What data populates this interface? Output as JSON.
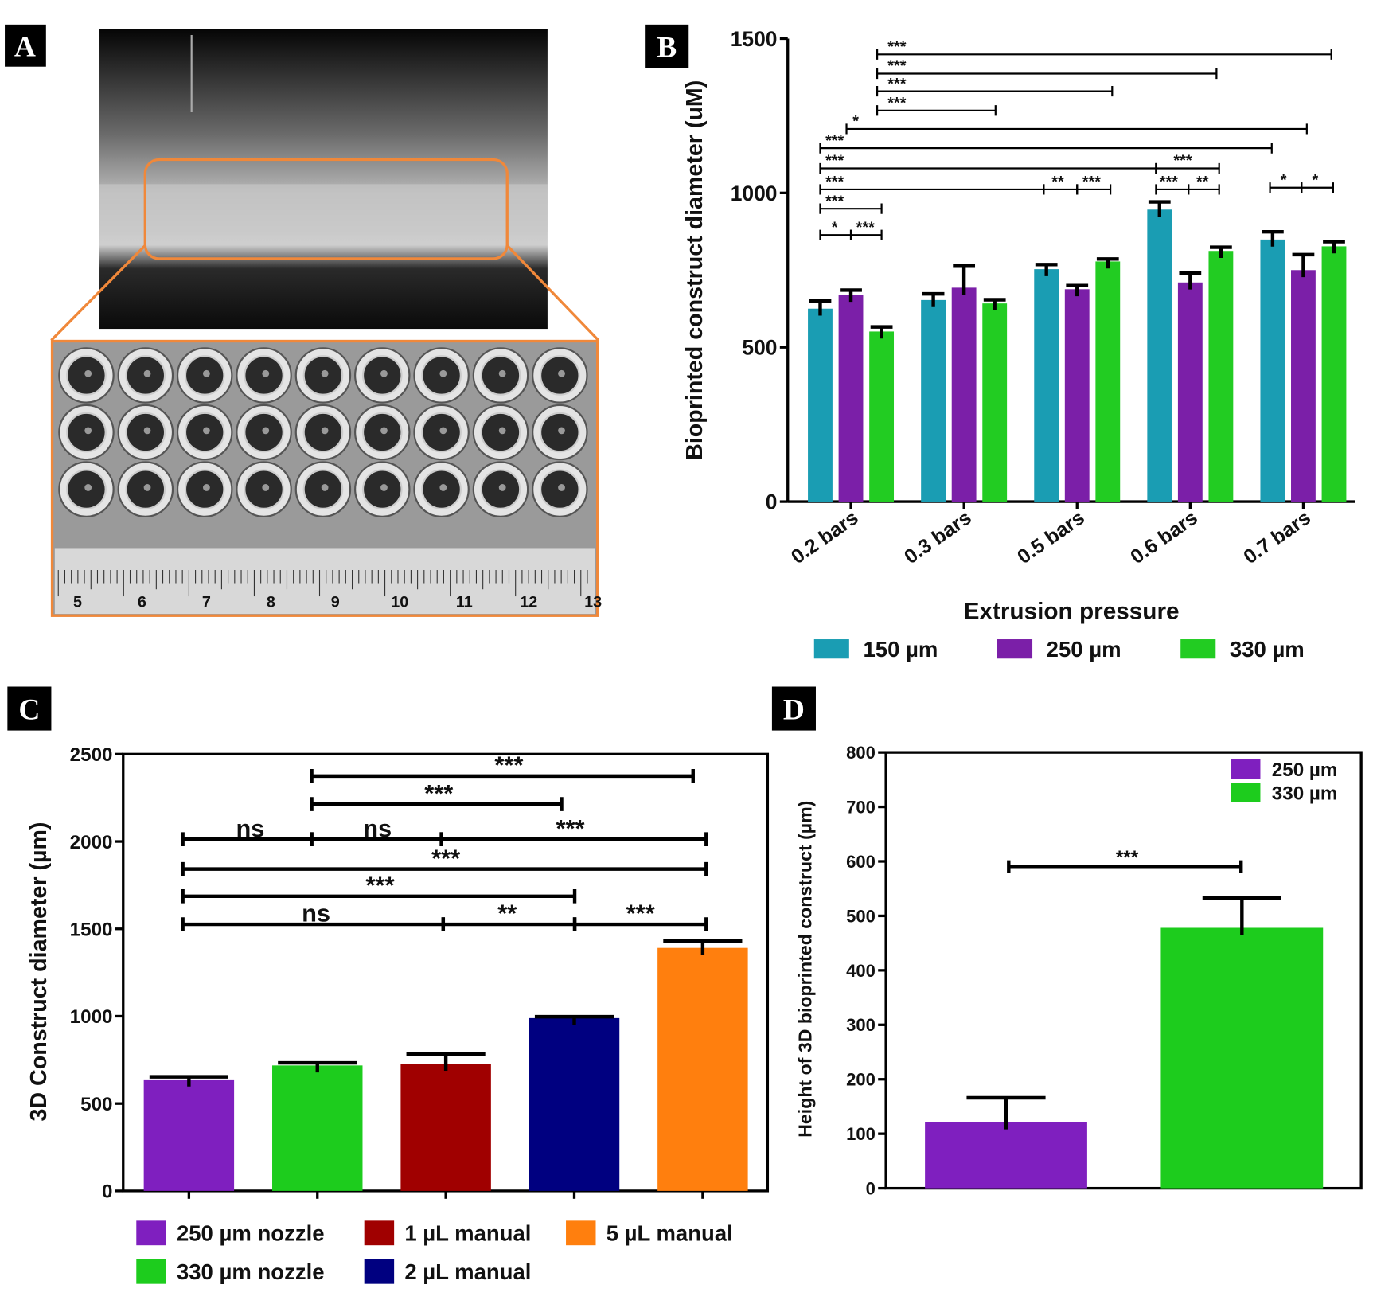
{
  "photo": {
    "label": "A",
    "ruler": [
      "5",
      "6",
      "7",
      "8",
      "9",
      "10",
      "11",
      "12",
      "13"
    ]
  },
  "chart_data": [
    {
      "type": "grouped_bar",
      "panel": "B",
      "categories": [
        "0.2 bars",
        "0.3 bars",
        "0.5 bars",
        "0.6 bars",
        "0.7 bars"
      ],
      "series": [
        {
          "name": "150 µm",
          "color": "#1a9db3",
          "values": [
            625,
            653,
            753,
            946,
            849
          ],
          "errors": [
            25,
            20,
            15,
            25,
            25
          ]
        },
        {
          "name": "250 µm",
          "color": "#7b1fa8",
          "values": [
            670,
            693,
            688,
            710,
            750
          ],
          "errors": [
            15,
            70,
            12,
            30,
            50
          ]
        },
        {
          "name": "330 µm",
          "color": "#22cc22",
          "values": [
            551,
            642,
            778,
            812,
            827
          ],
          "errors": [
            15,
            12,
            8,
            12,
            15
          ]
        }
      ],
      "ylim": [
        0,
        1500
      ],
      "yticks": [
        0,
        500,
        1000,
        1500
      ],
      "ylabel": "Bioprinted construct diameter (uM)",
      "xlabel": "Extrusion pressure",
      "annotations": [
        "***",
        "***",
        "***",
        "***",
        "*",
        "***",
        "***",
        "***",
        "**",
        "***",
        "***",
        "*",
        "***",
        "***",
        "***",
        "**",
        "*",
        "*"
      ]
    },
    {
      "type": "bar",
      "panel": "C",
      "categories": [
        "250 µm nozzle",
        "330 µm nozzle",
        "1 µL manual",
        "2 µL manual",
        "5 µL manual"
      ],
      "colors": [
        "#7f1fbf",
        "#1dcc1d",
        "#a00000",
        "#000080",
        "#ff7f0e"
      ],
      "values": [
        638,
        718,
        728,
        989,
        1391
      ],
      "errors": [
        15,
        15,
        55,
        8,
        40
      ],
      "ylim": [
        0,
        2500
      ],
      "yticks": [
        0,
        500,
        1000,
        1500,
        2000,
        2500
      ],
      "ylabel": "3D Construct diameter (µm)",
      "box": true,
      "annotations": [
        "***",
        "***",
        "ns",
        "ns",
        "***",
        "***",
        "***",
        "ns",
        "**",
        "***"
      ]
    },
    {
      "type": "series_bar",
      "panel": "D",
      "series": [
        {
          "name": "250 µm",
          "color": "#7f1fbf",
          "values": [
            121
          ],
          "errors": [
            45
          ]
        },
        {
          "name": "330 µm",
          "color": "#1dcc1d",
          "values": [
            478
          ],
          "errors": [
            55
          ]
        }
      ],
      "ylim": [
        0,
        800
      ],
      "yticks": [
        0,
        100,
        200,
        300,
        400,
        500,
        600,
        700,
        800
      ],
      "ylabel": "Height of 3D bioprinted construct (µm)",
      "box": true,
      "legend": "top-right",
      "annotations": [
        "***"
      ]
    }
  ]
}
